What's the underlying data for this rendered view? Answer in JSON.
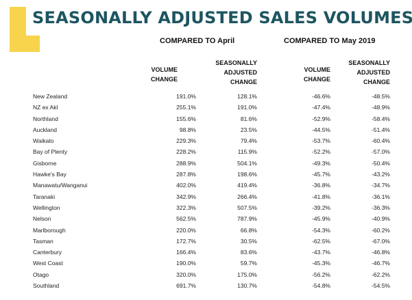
{
  "title": "SEASONALLY ADJUSTED SALES VOLUMES",
  "colors": {
    "title": "#1d5560",
    "accent": "#f7d44c"
  },
  "groups": {
    "april": "COMPARED TO April",
    "may2019": "COMPARED TO May 2019"
  },
  "headers": {
    "volume": [
      "VOLUME",
      "CHANGE"
    ],
    "adjusted": [
      "SEASONALLY",
      "ADJUSTED",
      "CHANGE"
    ]
  },
  "rows": [
    {
      "region": "New Zealand",
      "vol_apr": "191.0%",
      "adj_apr": "128.1%",
      "vol_may": "-46.6%",
      "adj_may": "-48.5%"
    },
    {
      "region": "NZ ex Akl",
      "vol_apr": "255.1%",
      "adj_apr": "191.0%",
      "vol_may": "-47.4%",
      "adj_may": "-48.9%"
    },
    {
      "region": "Northland",
      "vol_apr": "155.6%",
      "adj_apr": "81.6%",
      "vol_may": "-52.9%",
      "adj_may": "-58.4%"
    },
    {
      "region": "Auckland",
      "vol_apr": "98.8%",
      "adj_apr": "23.5%",
      "vol_may": "-44.5%",
      "adj_may": "-51.4%"
    },
    {
      "region": "Waikato",
      "vol_apr": "229.3%",
      "adj_apr": "79.4%",
      "vol_may": "-53.7%",
      "adj_may": "-60.4%"
    },
    {
      "region": "Bay of Plenty",
      "vol_apr": "228.2%",
      "adj_apr": "115.9%",
      "vol_may": "-52.2%",
      "adj_may": "-57.0%"
    },
    {
      "region": "Gisborne",
      "vol_apr": "288.9%",
      "adj_apr": "504.1%",
      "vol_may": "-49.3%",
      "adj_may": "-50.4%"
    },
    {
      "region": "Hawke's Bay",
      "vol_apr": "287.8%",
      "adj_apr": "198.6%",
      "vol_may": "-45.7%",
      "adj_may": "-43.2%"
    },
    {
      "region": "Manawatu/Wanganui",
      "vol_apr": "402.0%",
      "adj_apr": "419.4%",
      "vol_may": "-36.8%",
      "adj_may": "-34.7%"
    },
    {
      "region": "Taranaki",
      "vol_apr": "342.9%",
      "adj_apr": "266.4%",
      "vol_may": "-41.8%",
      "adj_may": "-36.1%"
    },
    {
      "region": "Wellington",
      "vol_apr": "322.3%",
      "adj_apr": "507.5%",
      "vol_may": "-39.2%",
      "adj_may": "-36.3%"
    },
    {
      "region": "Nelson",
      "vol_apr": "562.5%",
      "adj_apr": "787.9%",
      "vol_may": "-45.9%",
      "adj_may": "-40.9%"
    },
    {
      "region": "Marlborough",
      "vol_apr": "220.0%",
      "adj_apr": "66.8%",
      "vol_may": "-54.3%",
      "adj_may": "-60.2%"
    },
    {
      "region": "Tasman",
      "vol_apr": "172.7%",
      "adj_apr": "30.5%",
      "vol_may": "-62.5%",
      "adj_may": "-67.0%"
    },
    {
      "region": "Canterbury",
      "vol_apr": "166.4%",
      "adj_apr": "83.6%",
      "vol_may": "-43.7%",
      "adj_may": "-46.8%"
    },
    {
      "region": "West Coast",
      "vol_apr": "190.0%",
      "adj_apr": "59.7%",
      "vol_may": "-45.3%",
      "adj_may": "-46.7%"
    },
    {
      "region": "Otago",
      "vol_apr": "320.0%",
      "adj_apr": "175.0%",
      "vol_may": "-56.2%",
      "adj_may": "-62.2%"
    },
    {
      "region": "Southland",
      "vol_apr": "691.7%",
      "adj_apr": "130.7%",
      "vol_may": "-54.8%",
      "adj_may": "-54.5%"
    }
  ]
}
